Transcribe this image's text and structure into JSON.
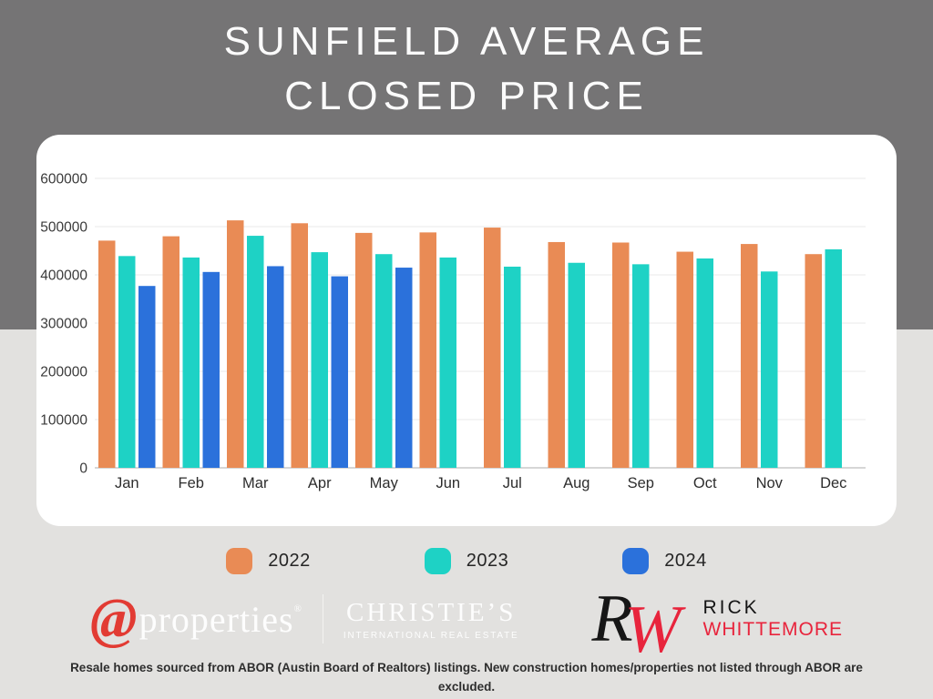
{
  "header": {
    "title_line1": "SUNFIELD AVERAGE",
    "title_line2": "CLOSED PRICE"
  },
  "chart_data": {
    "type": "bar",
    "title": "SUNFIELD AVERAGE CLOSED PRICE",
    "categories": [
      "Jan",
      "Feb",
      "Mar",
      "Apr",
      "May",
      "Jun",
      "Jul",
      "Aug",
      "Sep",
      "Oct",
      "Nov",
      "Dec"
    ],
    "series": [
      {
        "name": "2022",
        "color": "#E98B55",
        "values": [
          471000,
          480000,
          513000,
          507000,
          487000,
          488000,
          498000,
          468000,
          467000,
          448000,
          464000,
          443000
        ]
      },
      {
        "name": "2023",
        "color": "#1ED2C5",
        "values": [
          439000,
          436000,
          481000,
          447000,
          443000,
          436000,
          417000,
          425000,
          422000,
          434000,
          407000,
          453000
        ]
      },
      {
        "name": "2024",
        "color": "#2B71DB",
        "values": [
          377000,
          406000,
          418000,
          397000,
          415000,
          null,
          null,
          null,
          null,
          null,
          null,
          null
        ]
      }
    ],
    "ylim": [
      0,
      600000
    ],
    "ytick_step": 100000,
    "ytick_labels": [
      "0",
      "100000",
      "200000",
      "300000",
      "400000",
      "500000",
      "600000"
    ],
    "grid": true,
    "xlabel": "",
    "ylabel": "",
    "legend_position": "bottom"
  },
  "legend": {
    "items": [
      {
        "label": "2022",
        "color": "#E98B55"
      },
      {
        "label": "2023",
        "color": "#1ED2C5"
      },
      {
        "label": "2024",
        "color": "#2B71DB"
      }
    ]
  },
  "branding": {
    "atproperties": {
      "at_symbol": "@",
      "name": "properties",
      "registered": "®"
    },
    "christies": {
      "name": "CHRISTIE’S",
      "tagline": "INTERNATIONAL REAL ESTATE"
    },
    "agent": {
      "monogram_r": "R",
      "monogram_w": "W",
      "first_name": "RICK",
      "last_name": "WHITTEMORE"
    }
  },
  "footer": {
    "disclaimer": "Resale homes sourced from ABOR (Austin Board of Realtors) listings. New construction homes/properties not listed through ABOR are excluded."
  },
  "colors": {
    "header_background": "#757475",
    "page_background": "#E2E1DF",
    "card_background": "#FFFFFF",
    "title_text": "#FBFBFB",
    "atproperties_red": "#E23B33",
    "agent_red": "#E8243C"
  }
}
